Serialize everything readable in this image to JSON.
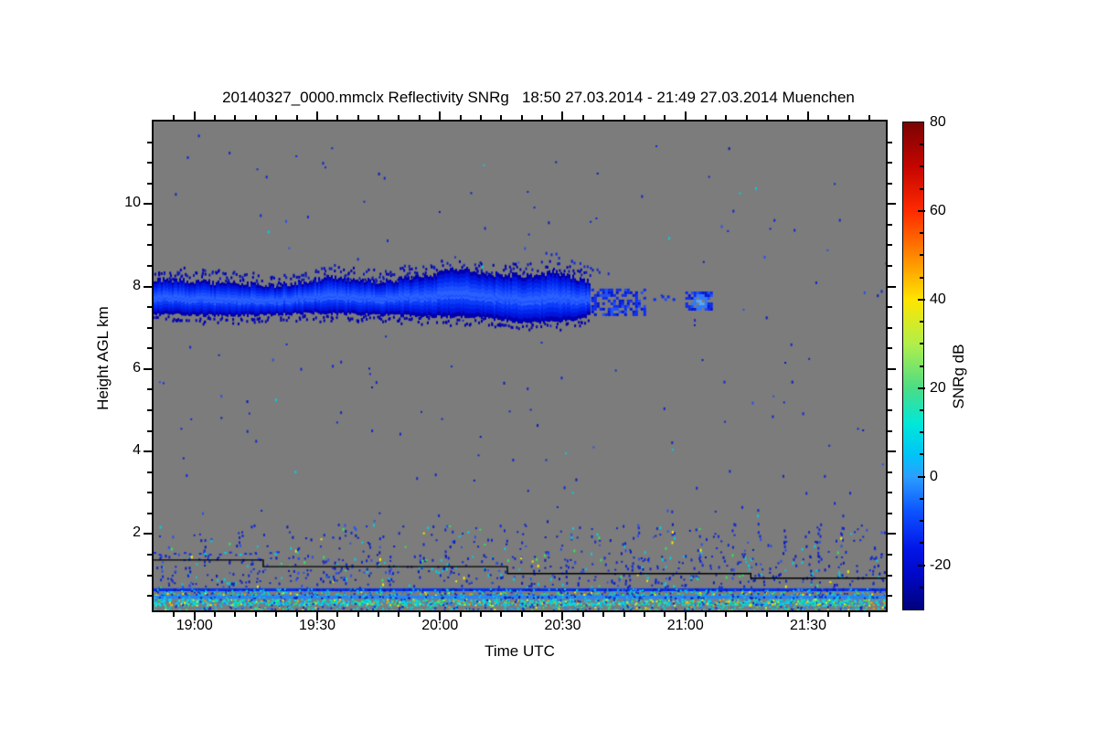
{
  "chart_data": {
    "type": "heatmap",
    "title": "20140327_0000.mmclx Reflectivity SNRg   18:50 27.03.2014 - 21:49 27.03.2014 Muenchen",
    "xlabel": "Time UTC",
    "ylabel": "Height AGL km",
    "colorbar_label": "SNRg dB",
    "x_start_min": 1130,
    "x_end_min": 1309,
    "x_major_ticks": [
      {
        "m": 1140,
        "label": "19:00"
      },
      {
        "m": 1170,
        "label": "19:30"
      },
      {
        "m": 1200,
        "label": "20:00"
      },
      {
        "m": 1230,
        "label": "20:30"
      },
      {
        "m": 1260,
        "label": "21:00"
      },
      {
        "m": 1290,
        "label": "21:30"
      }
    ],
    "x_minor_step_min": 5,
    "y_min_km": 0.15,
    "y_max_km": 12.0,
    "y_major_ticks": [
      {
        "v": 2,
        "label": "2"
      },
      {
        "v": 4,
        "label": "4"
      },
      {
        "v": 6,
        "label": "6"
      },
      {
        "v": 8,
        "label": "8"
      },
      {
        "v": 10,
        "label": "10"
      }
    ],
    "y_minor_step_km": 0.5,
    "value_range_db": [
      -30,
      80
    ],
    "colorbar_major_ticks": [
      {
        "v": 80,
        "label": "80"
      },
      {
        "v": 60,
        "label": "60"
      },
      {
        "v": 40,
        "label": "40"
      },
      {
        "v": 20,
        "label": "20"
      },
      {
        "v": 0,
        "label": "0"
      },
      {
        "v": -20,
        "label": "-20"
      }
    ],
    "colorbar_minor_step_db": 5,
    "colorbar_stops": [
      [
        80,
        "#7a0403"
      ],
      [
        70,
        "#c50500"
      ],
      [
        60,
        "#ff2a00"
      ],
      [
        50,
        "#ff8700"
      ],
      [
        40,
        "#ffe500"
      ],
      [
        30,
        "#b0ef4a"
      ],
      [
        20,
        "#4cdc85"
      ],
      [
        12,
        "#00e8d8"
      ],
      [
        5,
        "#00c4f8"
      ],
      [
        0,
        "#2b9fff"
      ],
      [
        -8,
        "#0c52ff"
      ],
      [
        -16,
        "#0317e8"
      ],
      [
        -22,
        "#0008c8"
      ],
      [
        -30,
        "#00027a"
      ]
    ],
    "background_color": "#7c7c7c",
    "cloud_layer_colors": [
      "#0000b0",
      "#0014dd",
      "#0028ee",
      "#0d3bfa",
      "#1c50ff",
      "#2a60ff",
      "#1c50ff",
      "#0d3bfa",
      "#0028ee",
      "#0014dd",
      "#0000b0"
    ],
    "features": {
      "cloud_layer": {
        "t0": 1130,
        "t1": 1236.5,
        "top_km": [
          [
            1130,
            8.18
          ],
          [
            1148,
            8.08
          ],
          [
            1160,
            8.03
          ],
          [
            1173,
            8.22
          ],
          [
            1186,
            8.12
          ],
          [
            1197,
            8.28
          ],
          [
            1204,
            8.45
          ],
          [
            1213,
            8.3
          ],
          [
            1221,
            8.27
          ],
          [
            1228,
            8.35
          ],
          [
            1236.5,
            8.12
          ]
        ],
        "base_km": [
          [
            1130,
            7.33
          ],
          [
            1150,
            7.3
          ],
          [
            1170,
            7.36
          ],
          [
            1190,
            7.3
          ],
          [
            1210,
            7.25
          ],
          [
            1222,
            7.12
          ],
          [
            1231,
            7.17
          ],
          [
            1236.5,
            7.3
          ]
        ]
      },
      "cloud_fragments": [
        {
          "t0": 1237,
          "t1": 1250,
          "h0": 7.35,
          "h1": 7.95,
          "density": 0.5,
          "bright_core": false
        },
        {
          "t0": 1251.5,
          "t1": 1258,
          "h0": 7.5,
          "h1": 7.85,
          "density": 0.12,
          "bright_core": false
        },
        {
          "t0": 1260,
          "t1": 1266.5,
          "h0": 7.42,
          "h1": 7.88,
          "density": 0.85,
          "bright_core": true
        }
      ],
      "fall_streak": {
        "t0": 1226,
        "h0": 8.85,
        "t1": 1242,
        "h1": 8.3,
        "dashes": 16
      },
      "dashed_layer": {
        "t0": 1130,
        "t1": 1162,
        "h": 1.55,
        "dashes": 26
      },
      "surface_line_km": [
        [
          1130,
          1.37
        ],
        [
          1156.8,
          1.37
        ],
        [
          1156.8,
          1.21
        ],
        [
          1216.5,
          1.21
        ],
        [
          1216.5,
          1.04
        ],
        [
          1276,
          1.04
        ],
        [
          1276,
          0.93
        ],
        [
          1309,
          0.93
        ]
      ],
      "noise_regions": [
        {
          "h0": 2.3,
          "h1": 11.9,
          "count": 170,
          "palette": "aloft"
        },
        {
          "h0": 1.5,
          "h1": 2.3,
          "count": 190,
          "palette": "low"
        },
        {
          "h0": 0.72,
          "h1": 1.5,
          "count": 520,
          "palette": "low"
        }
      ],
      "column_streaks": {
        "count": 34,
        "h0": 0.75,
        "h1": 2.05
      },
      "surface_bands": [
        {
          "h0": 0.615,
          "h1": 0.685,
          "solid": "#0433ee",
          "speck_count": 260,
          "palette": "band1"
        },
        {
          "h0": 0.505,
          "h1": 0.615,
          "solid": null,
          "speck_count": 500,
          "palette": "mix"
        },
        {
          "h0": 0.435,
          "h1": 0.505,
          "solid": "#1f86ff",
          "speck_count": 180,
          "palette": "band1"
        },
        {
          "h0": 0.26,
          "h1": 0.435,
          "solid": null,
          "speck_count": 1500,
          "palette": "bright"
        },
        {
          "h0": 0.15,
          "h1": 0.26,
          "solid": null,
          "speck_count": 330,
          "palette": "mix"
        }
      ]
    },
    "palettes": {
      "aloft": {
        "colors": [
          "#1228d0",
          "#0a1cb8",
          "#2b50ee",
          "#00cfe0"
        ],
        "weights": [
          0.62,
          0.2,
          0.12,
          0.06
        ]
      },
      "low": {
        "colors": [
          "#1228d0",
          "#0a1cb8",
          "#2b50ee",
          "#00cfe0",
          "#2ee65a",
          "#f2ee00"
        ],
        "weights": [
          0.5,
          0.18,
          0.14,
          0.12,
          0.04,
          0.02
        ]
      },
      "mix": {
        "colors": [
          "#00cfe0",
          "#1228d0",
          "#2b79ff",
          "#2ee65a",
          "#f2ee00",
          "#ff9800"
        ],
        "weights": [
          0.38,
          0.28,
          0.16,
          0.1,
          0.05,
          0.03
        ]
      },
      "bright": {
        "colors": [
          "#00e2e6",
          "#00c8f0",
          "#2b79ff",
          "#2ee65a",
          "#f2ee00",
          "#ff9800",
          "#1228d0"
        ],
        "weights": [
          0.4,
          0.17,
          0.12,
          0.11,
          0.1,
          0.04,
          0.06
        ]
      },
      "band1": {
        "colors": [
          "#0a1cb8",
          "#00cfe0",
          "#2b79ff"
        ],
        "weights": [
          0.55,
          0.3,
          0.15
        ]
      }
    }
  }
}
